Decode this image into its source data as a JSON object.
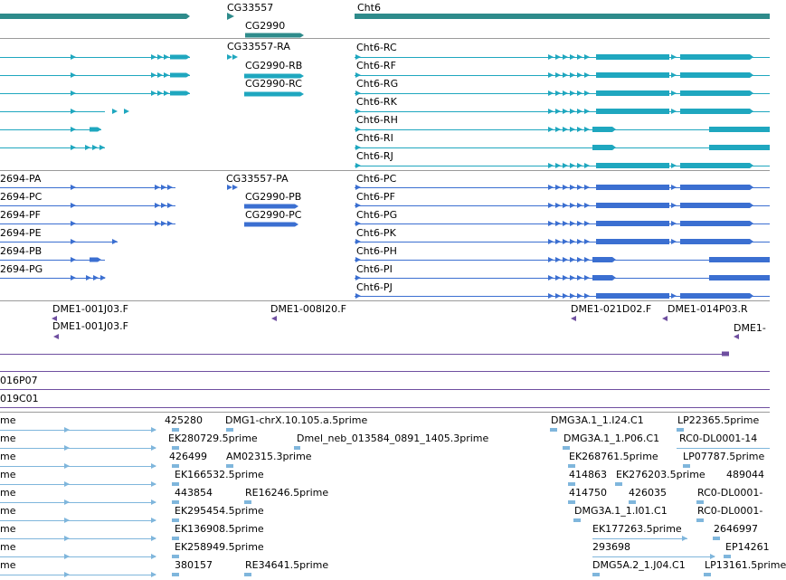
{
  "genes": {
    "labels": [
      "CG33557",
      "CG2990",
      "Cht6"
    ],
    "color": "#2e8b8b"
  },
  "transcripts": {
    "labels": [
      "CG33557-RA",
      "CG2990-RB",
      "CG2990-RC",
      "Cht6-RC",
      "Cht6-RF",
      "Cht6-RG",
      "Cht6-RK",
      "Cht6-RH",
      "Cht6-RI",
      "Cht6-RJ"
    ],
    "color": "#1fa7bf"
  },
  "proteins": {
    "labels": [
      "2694-PA",
      "2694-PC",
      "2694-PF",
      "2694-PE",
      "2694-PB",
      "2694-PG",
      "CG33557-PA",
      "CG2990-PB",
      "CG2990-PC",
      "Cht6-PC",
      "Cht6-PF",
      "Cht6-PG",
      "Cht6-PK",
      "Cht6-PH",
      "Cht6-PI",
      "Cht6-PJ"
    ],
    "color": "#3b6fd1"
  },
  "bac_ends": {
    "labels": [
      "DME1-001J03.F",
      "DME1-001J03.F",
      "DME1-008I20.F",
      "DME1-021D02.F",
      "DME1-014P03.R",
      "DME1-"
    ],
    "color": "#6f4fa0"
  },
  "clones": {
    "labels": [
      "016P07",
      "019C01"
    ]
  },
  "ests": {
    "labels": [
      "me",
      "425280",
      "DMG1-chrX.10.105.a.5prime",
      "DMG3A.1_1.I24.C1",
      "LP22365.5prime",
      "me",
      "EK280729.5prime",
      "Dmel_neb_013584_0891_1405.3prime",
      "DMG3A.1_1.P06.C1",
      "RC0-DL0001-14",
      "me",
      "426499",
      "AM02315.3prime",
      "EK268761.5prime",
      "LP07787.5prime",
      "me",
      "EK166532.5prime",
      "414863",
      "EK276203.5prime",
      "489044",
      "me",
      "443854",
      "RE16246.5prime",
      "414750",
      "426035",
      "RC0-DL0001-",
      "me",
      "EK295454.5prime",
      "DMG3A.1_1.I01.C1",
      "RC0-DL0001-",
      "me",
      "EK136908.5prime",
      "EK177263.5prime",
      "2646997",
      "me",
      "EK258949.5prime",
      "293698",
      "EP14261",
      "me",
      "380157",
      "RE34641.5prime",
      "DMG5A.2_1.J04.C1",
      "LP13161.5prime"
    ],
    "color": "#7fb6dc"
  }
}
